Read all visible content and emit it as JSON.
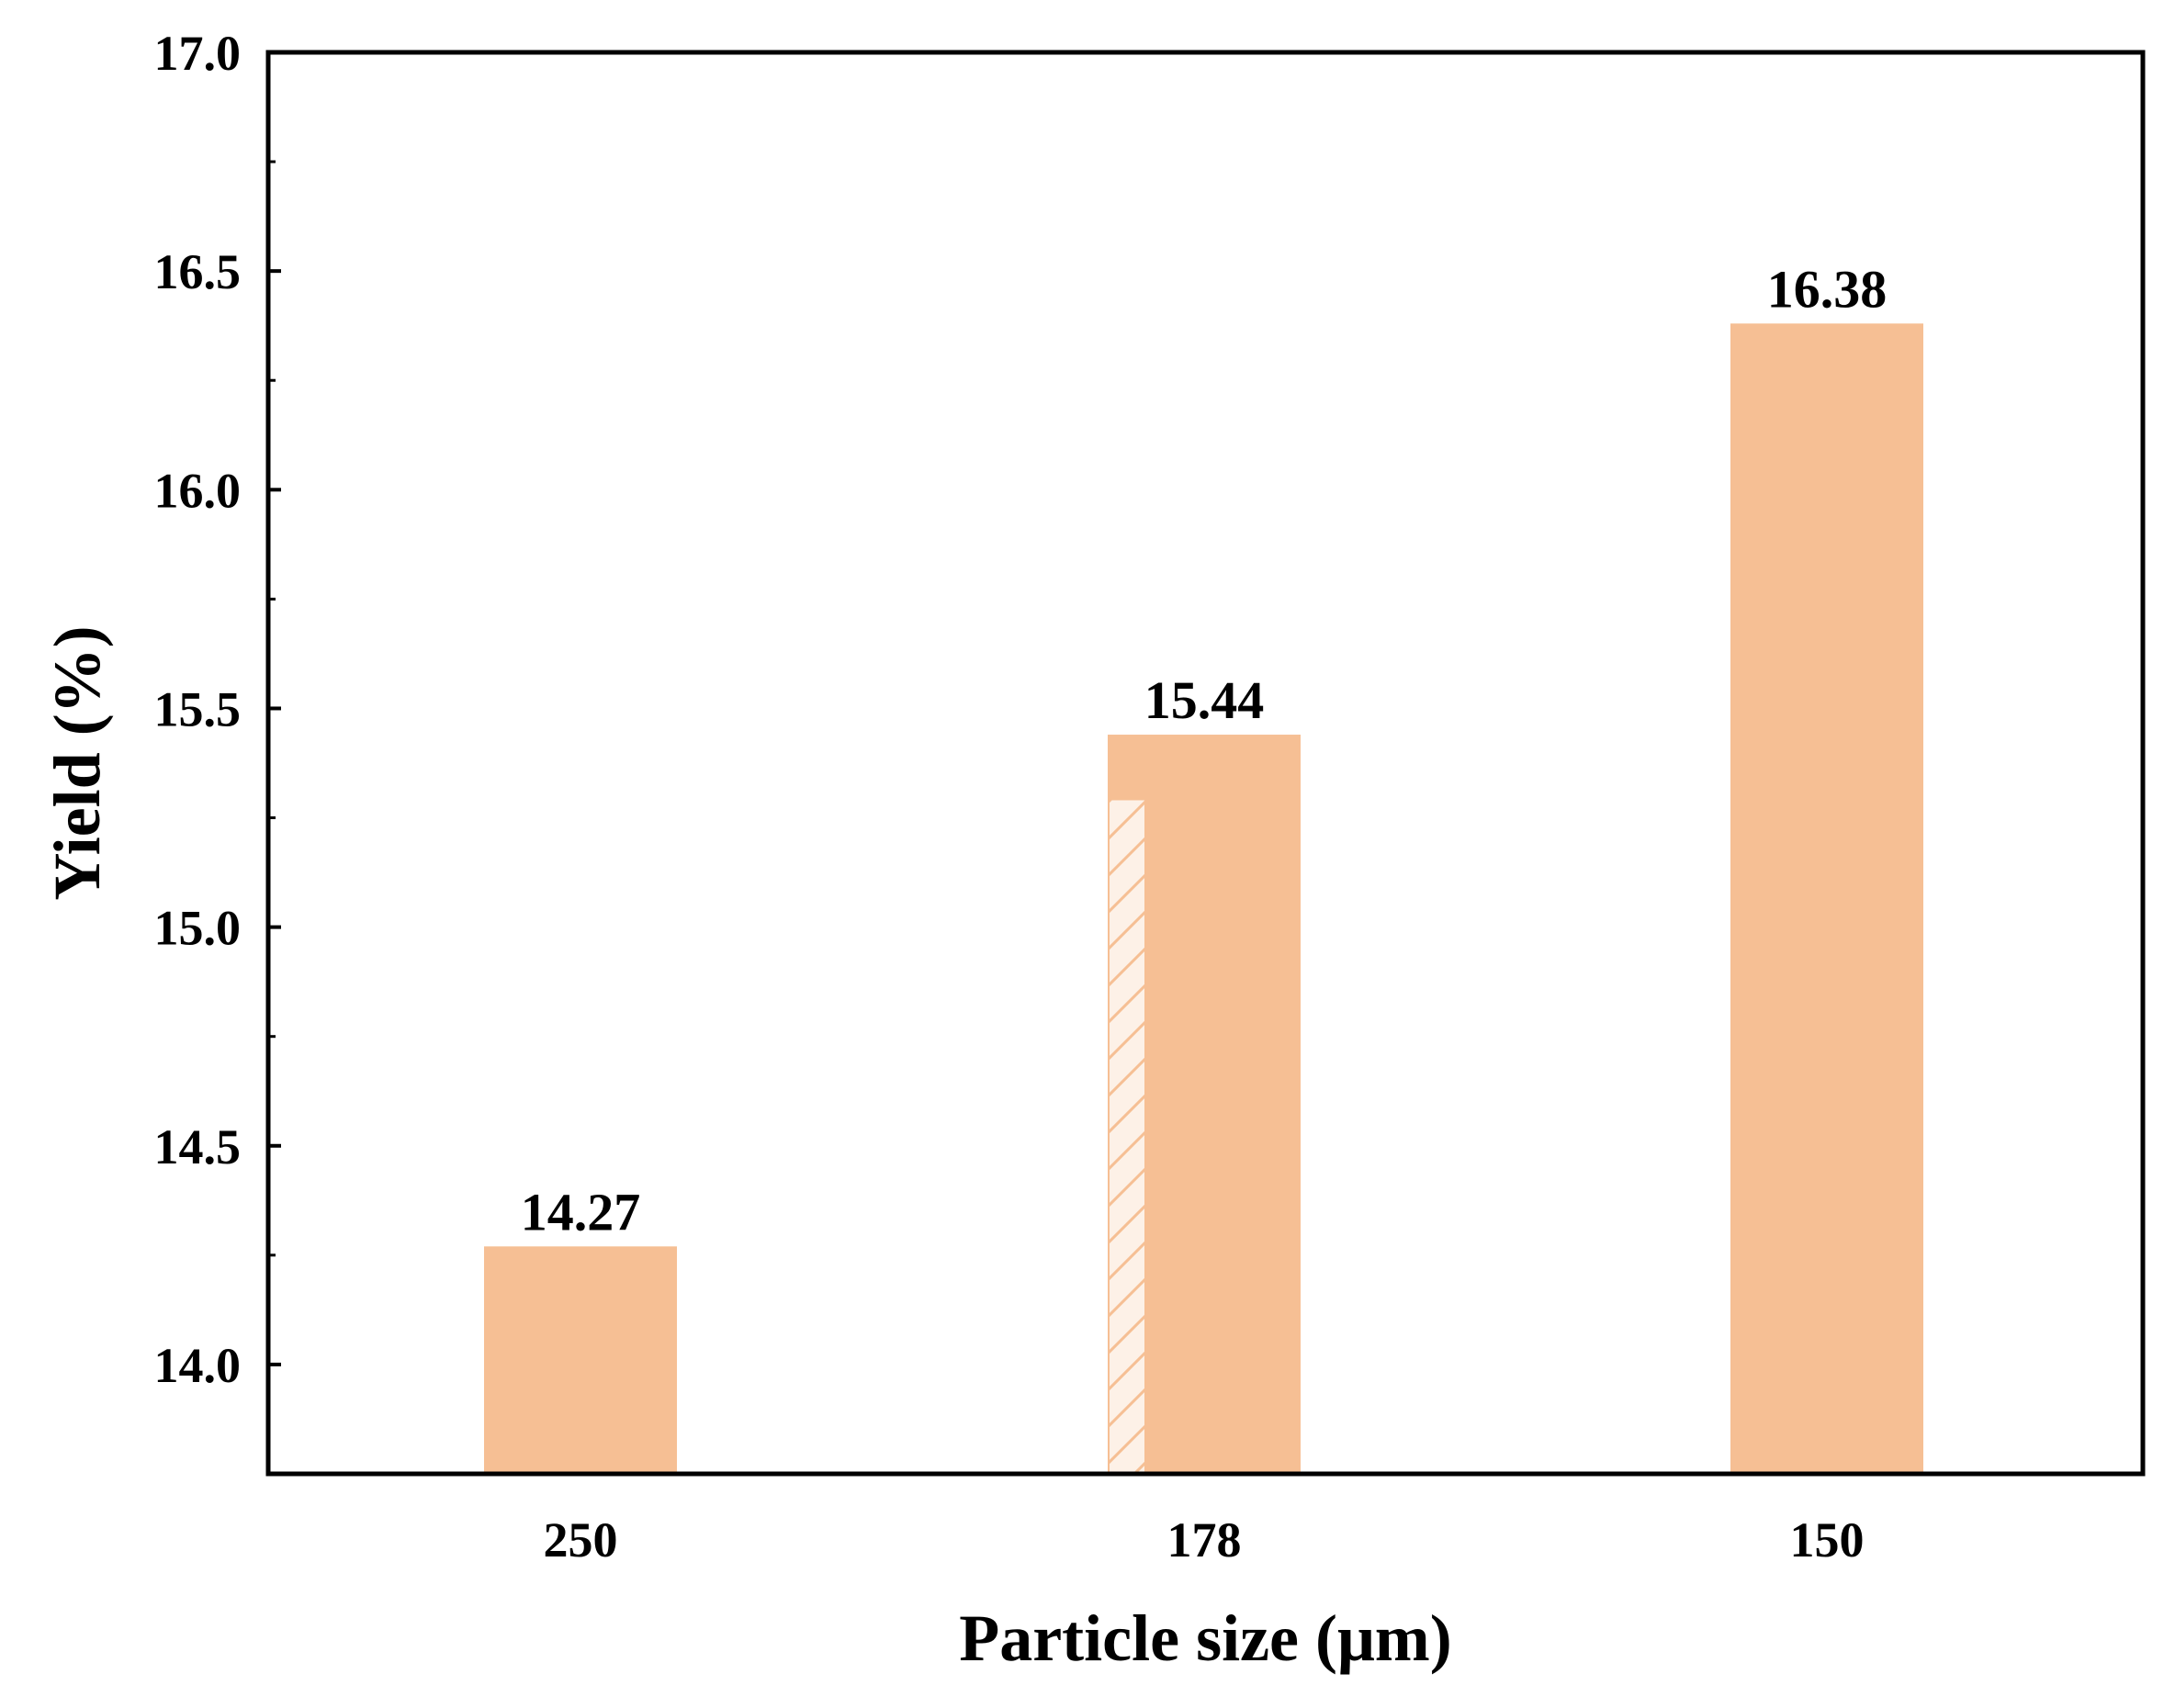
{
  "chart_data": {
    "type": "bar",
    "title": "",
    "xlabel": "Particle size (μm)",
    "ylabel": "Yield (%)",
    "categories": [
      "250",
      "178",
      "150"
    ],
    "series": [
      {
        "values": [
          14.27,
          15.44,
          16.38
        ],
        "data_labels": [
          "14.27",
          "15.44",
          "16.38"
        ]
      }
    ],
    "ylim": [
      13.75,
      17.0
    ],
    "yticks": [
      14.0,
      14.5,
      15.0,
      15.5,
      16.0,
      16.5,
      17.0
    ],
    "ytick_labels": [
      "14.0",
      "14.5",
      "15.0",
      "15.5",
      "16.0",
      "16.5",
      "17.0"
    ],
    "grid": false,
    "legend": "none",
    "colors": {
      "bar": "#F6BF94",
      "axis": "#000000",
      "text": "#000000",
      "hatch_background": "#FDF1E7",
      "hatch_line": "#F6BF94"
    }
  }
}
